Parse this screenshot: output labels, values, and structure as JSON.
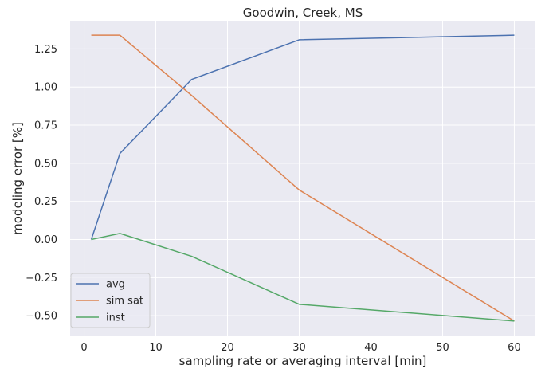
{
  "chart_data": {
    "type": "line",
    "title": "Goodwin, Creek, MS",
    "xlabel": "sampling rate or averaging interval [min]",
    "ylabel": "modeling error [%]",
    "xlim": [
      -1.95,
      62.95
    ],
    "ylim": [
      -0.635,
      1.435
    ],
    "xticks": [
      0,
      10,
      20,
      30,
      40,
      50,
      60
    ],
    "yticks": [
      -0.5,
      -0.25,
      0.0,
      0.25,
      0.5,
      0.75,
      1.0,
      1.25
    ],
    "xtick_labels": [
      "0",
      "10",
      "20",
      "30",
      "40",
      "50",
      "60"
    ],
    "ytick_labels": [
      "−0.50",
      "−0.25",
      "0.00",
      "0.25",
      "0.50",
      "0.75",
      "1.00",
      "1.25"
    ],
    "x": [
      1,
      5,
      15,
      30,
      60
    ],
    "series": [
      {
        "name": "avg",
        "color": "#4c72b0",
        "values": [
          0.0,
          0.565,
          1.05,
          1.31,
          1.34
        ]
      },
      {
        "name": "sim sat",
        "color": "#dd8452",
        "values": [
          1.34,
          1.34,
          0.945,
          0.325,
          -0.535
        ]
      },
      {
        "name": "inst",
        "color": "#55a868",
        "values": [
          0.0,
          0.04,
          -0.11,
          -0.425,
          -0.535
        ]
      }
    ],
    "grid": true,
    "legend_position": "lower-left",
    "background_color": "#eaeaf2",
    "grid_color": "#ffffff"
  }
}
